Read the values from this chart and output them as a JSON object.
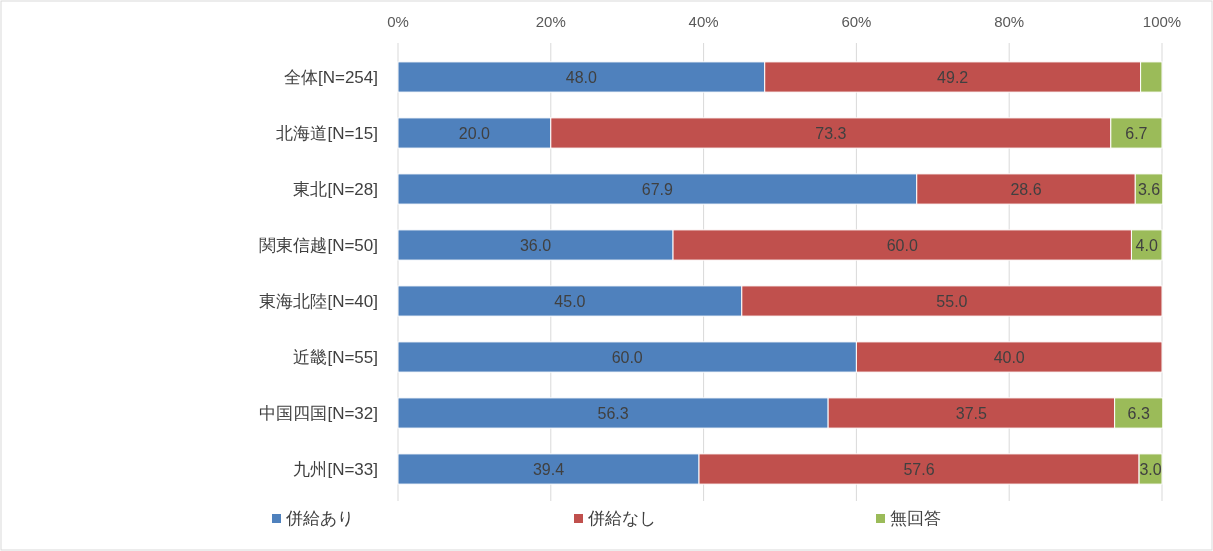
{
  "chart_data": {
    "type": "bar",
    "orientation": "horizontal",
    "stacked": true,
    "categories": [
      "全体[N=254]",
      "北海道[N=15]",
      "東北[N=28]",
      "関東信越[N=50]",
      "東海北陸[N=40]",
      "近畿[N=55]",
      "中国四国[N=32]",
      "九州[N=33]"
    ],
    "series": [
      {
        "name": "併給あり",
        "color": "#4f81bd",
        "values": [
          48.0,
          20.0,
          67.9,
          36.0,
          45.0,
          60.0,
          56.3,
          39.4
        ],
        "value_labels": [
          "48.0",
          "20.0",
          "67.9",
          "36.0",
          "45.0",
          "60.0",
          "56.3",
          "39.4"
        ]
      },
      {
        "name": "併給なし",
        "color": "#c0504d",
        "values": [
          49.2,
          73.3,
          28.6,
          60.0,
          55.0,
          40.0,
          37.5,
          57.6
        ],
        "value_labels": [
          "49.2",
          "73.3",
          "28.6",
          "60.0",
          "55.0",
          "40.0",
          "37.5",
          "57.6"
        ]
      },
      {
        "name": "無回答",
        "color": "#9bbb59",
        "values": [
          2.8,
          6.7,
          3.6,
          4.0,
          null,
          null,
          6.3,
          3.0
        ],
        "value_labels": [
          null,
          "6.7",
          "3.6",
          "4.0",
          null,
          null,
          "6.3",
          "3.0"
        ]
      }
    ],
    "xlim": [
      0,
      100
    ],
    "xticks": [
      {
        "value": 0,
        "label": "0%"
      },
      {
        "value": 20,
        "label": "20%"
      },
      {
        "value": 40,
        "label": "40%"
      },
      {
        "value": 60,
        "label": "60%"
      },
      {
        "value": 80,
        "label": "80%"
      },
      {
        "value": 100,
        "label": "100%"
      }
    ],
    "grid": "x",
    "legend": "bottom"
  }
}
